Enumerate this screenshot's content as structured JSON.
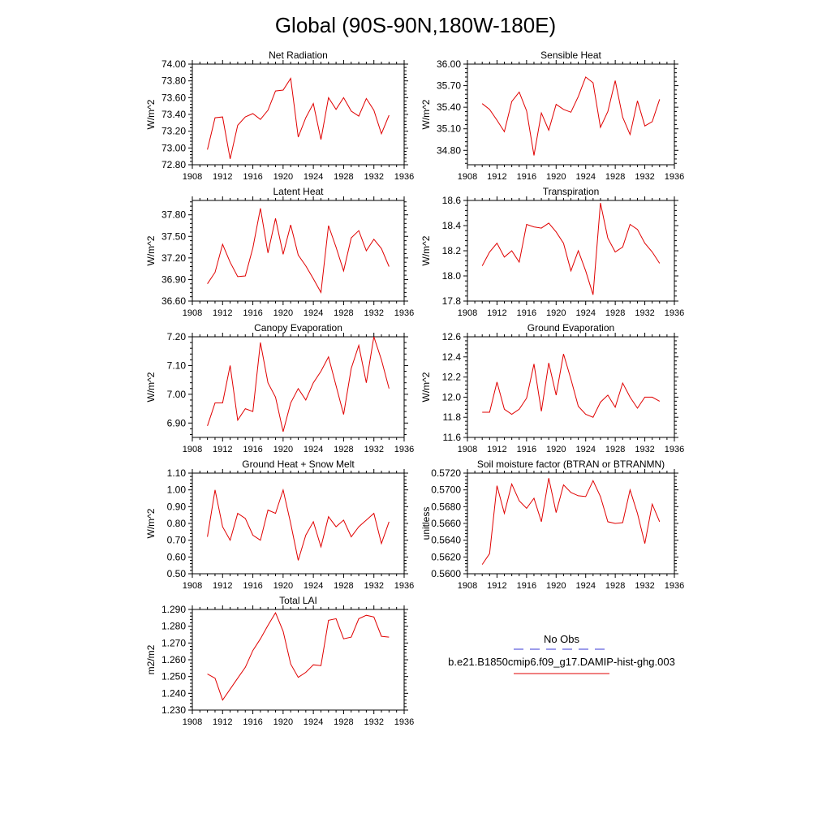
{
  "title": "Global (90S-90N,180W-180E)",
  "legend": {
    "obs_label": "No Obs",
    "obs_color": "#3a3ad6",
    "model_label": "b.e21.B1850cmip6.f09_g17.DAMIP-hist-ghg.003",
    "model_color": "#e00000"
  },
  "chart_data": [
    {
      "type": "line",
      "title": "Net Radiation",
      "ylabel": "W/m^2",
      "xlim": [
        1908,
        1936
      ],
      "ylim": [
        72.8,
        74.0
      ],
      "x_ticks": [
        "1908",
        "1912",
        "1916",
        "1920",
        "1924",
        "1928",
        "1932",
        "1936"
      ],
      "y_ticks": [
        "72.80",
        "73.00",
        "73.20",
        "73.40",
        "73.60",
        "73.80",
        "74.00"
      ],
      "x": [
        1910,
        1911,
        1912,
        1913,
        1914,
        1915,
        1916,
        1917,
        1918,
        1919,
        1920,
        1921,
        1922,
        1923,
        1924,
        1925,
        1926,
        1927,
        1928,
        1929,
        1930,
        1931,
        1932,
        1933,
        1934
      ],
      "values": [
        72.98,
        73.36,
        73.37,
        72.87,
        73.27,
        73.37,
        73.41,
        73.34,
        73.45,
        73.68,
        73.69,
        73.83,
        73.13,
        73.36,
        73.53,
        73.1,
        73.6,
        73.46,
        73.6,
        73.44,
        73.38,
        73.59,
        73.45,
        73.17,
        73.39
      ]
    },
    {
      "type": "line",
      "title": "Sensible Heat",
      "ylabel": "W/m^2",
      "xlim": [
        1908,
        1936
      ],
      "ylim": [
        34.6,
        36.0
      ],
      "x_ticks": [
        "1908",
        "1912",
        "1916",
        "1920",
        "1924",
        "1928",
        "1932",
        "1936"
      ],
      "y_ticks": [
        "34.80",
        "35.10",
        "35.40",
        "35.70",
        "36.00"
      ],
      "x": [
        1910,
        1911,
        1912,
        1913,
        1914,
        1915,
        1916,
        1917,
        1918,
        1919,
        1920,
        1921,
        1922,
        1923,
        1924,
        1925,
        1926,
        1927,
        1928,
        1929,
        1930,
        1931,
        1932,
        1933,
        1934
      ],
      "values": [
        35.45,
        35.37,
        35.22,
        35.06,
        35.48,
        35.61,
        35.35,
        34.73,
        35.32,
        35.08,
        35.44,
        35.37,
        35.33,
        35.55,
        35.82,
        35.74,
        35.12,
        35.34,
        35.77,
        35.26,
        35.02,
        35.49,
        35.14,
        35.2,
        35.51
      ]
    },
    {
      "type": "line",
      "title": "Latent Heat",
      "ylabel": "W/m^2",
      "xlim": [
        1908,
        1936
      ],
      "ylim": [
        36.6,
        38.0
      ],
      "x_ticks": [
        "1908",
        "1912",
        "1916",
        "1920",
        "1924",
        "1928",
        "1932",
        "1936"
      ],
      "y_ticks": [
        "36.60",
        "36.90",
        "37.20",
        "37.50",
        "37.80"
      ],
      "x": [
        1910,
        1911,
        1912,
        1913,
        1914,
        1915,
        1916,
        1917,
        1918,
        1919,
        1920,
        1921,
        1922,
        1923,
        1924,
        1925,
        1926,
        1927,
        1928,
        1929,
        1930,
        1931,
        1932,
        1933,
        1934
      ],
      "values": [
        36.84,
        37.0,
        37.39,
        37.14,
        36.94,
        36.95,
        37.34,
        37.89,
        37.27,
        37.75,
        37.25,
        37.66,
        37.24,
        37.09,
        36.91,
        36.72,
        37.65,
        37.35,
        37.02,
        37.48,
        37.58,
        37.3,
        37.46,
        37.33,
        37.08
      ]
    },
    {
      "type": "line",
      "title": "Transpiration",
      "ylabel": "W/m^2",
      "xlim": [
        1908,
        1936
      ],
      "ylim": [
        17.8,
        18.6
      ],
      "x_ticks": [
        "1908",
        "1912",
        "1916",
        "1920",
        "1924",
        "1928",
        "1932",
        "1936"
      ],
      "y_ticks": [
        "17.8",
        "18.0",
        "18.2",
        "18.4",
        "18.6"
      ],
      "x": [
        1910,
        1911,
        1912,
        1913,
        1914,
        1915,
        1916,
        1917,
        1918,
        1919,
        1920,
        1921,
        1922,
        1923,
        1924,
        1925,
        1926,
        1927,
        1928,
        1929,
        1930,
        1931,
        1932,
        1933,
        1934
      ],
      "values": [
        18.08,
        18.19,
        18.26,
        18.15,
        18.2,
        18.11,
        18.41,
        18.39,
        18.38,
        18.42,
        18.35,
        18.26,
        18.04,
        18.2,
        18.04,
        17.85,
        18.58,
        18.3,
        18.19,
        18.23,
        18.41,
        18.37,
        18.26,
        18.19,
        18.1
      ]
    },
    {
      "type": "line",
      "title": "Canopy Evaporation",
      "ylabel": "W/m^2",
      "xlim": [
        1908,
        1936
      ],
      "ylim": [
        6.85,
        7.2
      ],
      "x_ticks": [
        "1908",
        "1912",
        "1916",
        "1920",
        "1924",
        "1928",
        "1932",
        "1936"
      ],
      "y_ticks": [
        "6.90",
        "7.00",
        "7.10",
        "7.20"
      ],
      "x": [
        1910,
        1911,
        1912,
        1913,
        1914,
        1915,
        1916,
        1917,
        1918,
        1919,
        1920,
        1921,
        1922,
        1923,
        1924,
        1925,
        1926,
        1927,
        1928,
        1929,
        1930,
        1931,
        1932,
        1933,
        1934
      ],
      "values": [
        6.89,
        6.97,
        6.97,
        7.1,
        6.91,
        6.95,
        6.94,
        7.18,
        7.04,
        6.99,
        6.87,
        6.97,
        7.02,
        6.98,
        7.04,
        7.08,
        7.13,
        7.03,
        6.93,
        7.09,
        7.17,
        7.04,
        7.2,
        7.12,
        7.02
      ]
    },
    {
      "type": "line",
      "title": "Ground Evaporation",
      "ylabel": "W/m^2",
      "xlim": [
        1908,
        1936
      ],
      "ylim": [
        11.6,
        12.6
      ],
      "x_ticks": [
        "1908",
        "1912",
        "1916",
        "1920",
        "1924",
        "1928",
        "1932",
        "1936"
      ],
      "y_ticks": [
        "11.6",
        "11.8",
        "12.0",
        "12.2",
        "12.4",
        "12.6"
      ],
      "x": [
        1910,
        1911,
        1912,
        1913,
        1914,
        1915,
        1916,
        1917,
        1918,
        1919,
        1920,
        1921,
        1922,
        1923,
        1924,
        1925,
        1926,
        1927,
        1928,
        1929,
        1930,
        1931,
        1932,
        1933,
        1934
      ],
      "values": [
        11.85,
        11.85,
        12.15,
        11.88,
        11.83,
        11.88,
        11.99,
        12.33,
        11.86,
        12.34,
        12.02,
        12.43,
        12.18,
        11.91,
        11.83,
        11.8,
        11.95,
        12.02,
        11.9,
        12.14,
        12.0,
        11.89,
        12.0,
        12.0,
        11.96
      ]
    },
    {
      "type": "line",
      "title": "Ground Heat + Snow Melt",
      "ylabel": "W/m^2",
      "xlim": [
        1908,
        1936
      ],
      "ylim": [
        0.5,
        1.1
      ],
      "x_ticks": [
        "1908",
        "1912",
        "1916",
        "1920",
        "1924",
        "1928",
        "1932",
        "1936"
      ],
      "y_ticks": [
        "0.50",
        "0.60",
        "0.70",
        "0.80",
        "0.90",
        "1.00",
        "1.10"
      ],
      "x": [
        1910,
        1911,
        1912,
        1913,
        1914,
        1915,
        1916,
        1917,
        1918,
        1919,
        1920,
        1921,
        1922,
        1923,
        1924,
        1925,
        1926,
        1927,
        1928,
        1929,
        1930,
        1931,
        1932,
        1933,
        1934
      ],
      "values": [
        0.72,
        1.0,
        0.78,
        0.7,
        0.86,
        0.83,
        0.73,
        0.7,
        0.88,
        0.86,
        1.0,
        0.8,
        0.58,
        0.73,
        0.81,
        0.66,
        0.84,
        0.78,
        0.82,
        0.72,
        0.78,
        0.82,
        0.86,
        0.68,
        0.81
      ]
    },
    {
      "type": "line",
      "title": "Soil moisture factor (BTRAN or BTRANMN)",
      "ylabel": "unitless",
      "xlim": [
        1908,
        1936
      ],
      "ylim": [
        0.56,
        0.572
      ],
      "x_ticks": [
        "1908",
        "1912",
        "1916",
        "1920",
        "1924",
        "1928",
        "1932",
        "1936"
      ],
      "y_ticks": [
        "0.5600",
        "0.5620",
        "0.5640",
        "0.5660",
        "0.5680",
        "0.5700",
        "0.5720"
      ],
      "x": [
        1910,
        1911,
        1912,
        1913,
        1914,
        1915,
        1916,
        1917,
        1918,
        1919,
        1920,
        1921,
        1922,
        1923,
        1924,
        1925,
        1926,
        1927,
        1928,
        1929,
        1930,
        1931,
        1932,
        1933,
        1934
      ],
      "values": [
        0.5611,
        0.5624,
        0.5705,
        0.5672,
        0.5707,
        0.5687,
        0.5678,
        0.569,
        0.5662,
        0.5714,
        0.5673,
        0.5706,
        0.5697,
        0.5693,
        0.5692,
        0.5711,
        0.5692,
        0.5662,
        0.566,
        0.5661,
        0.57,
        0.5672,
        0.5636,
        0.5683,
        0.5662
      ]
    },
    {
      "type": "line",
      "title": "Total LAI",
      "ylabel": "m2/m2",
      "xlim": [
        1908,
        1936
      ],
      "ylim": [
        1.23,
        1.29
      ],
      "x_ticks": [
        "1908",
        "1912",
        "1916",
        "1920",
        "1924",
        "1928",
        "1932",
        "1936"
      ],
      "y_ticks": [
        "1.230",
        "1.240",
        "1.250",
        "1.260",
        "1.270",
        "1.280",
        "1.290"
      ],
      "x": [
        1910,
        1911,
        1912,
        1913,
        1914,
        1915,
        1916,
        1917,
        1918,
        1919,
        1920,
        1921,
        1922,
        1923,
        1924,
        1925,
        1926,
        1927,
        1928,
        1929,
        1930,
        1931,
        1932,
        1933,
        1934
      ],
      "values": [
        1.2515,
        1.249,
        1.236,
        1.2425,
        1.249,
        1.2555,
        1.2655,
        1.2725,
        1.2805,
        1.288,
        1.277,
        1.2575,
        1.2495,
        1.2525,
        1.257,
        1.2565,
        1.2835,
        1.2845,
        1.2725,
        1.2735,
        1.2845,
        1.2865,
        1.2855,
        1.274,
        1.2735
      ]
    }
  ]
}
